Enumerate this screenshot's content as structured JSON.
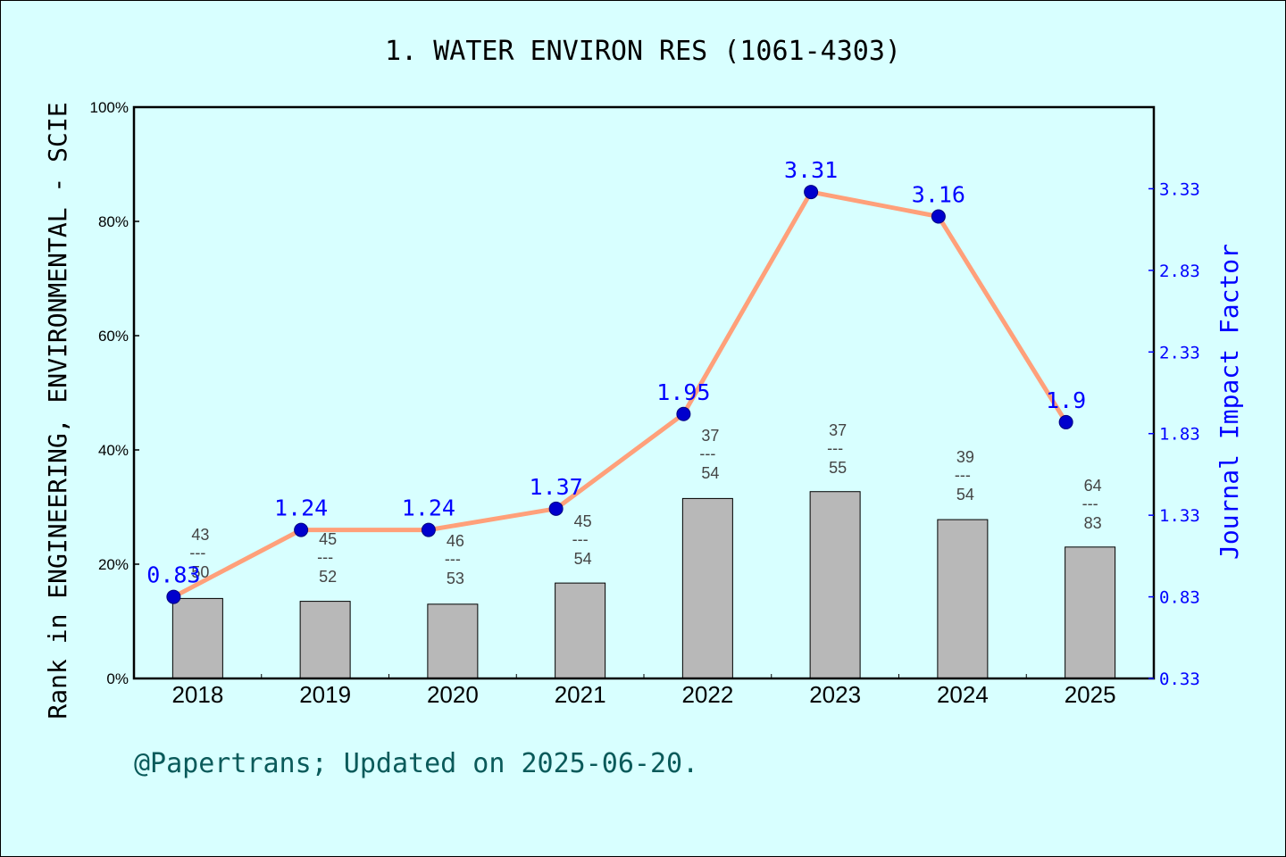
{
  "chart_data": {
    "type": "bar",
    "title": "1. WATER ENVIRON RES (1061-4303)",
    "ylabel": "Rank in ENGINEERING, ENVIRONMENTAL - SCIE",
    "y2label": "Journal Impact Factor",
    "footer": "@Papertrans; Updated on 2025-06-20.",
    "categories": [
      "2018",
      "2019",
      "2020",
      "2021",
      "2022",
      "2023",
      "2024",
      "2025"
    ],
    "ylim": [
      0,
      100
    ],
    "yticks": [
      "0%",
      "20%",
      "40%",
      "60%",
      "80%",
      "100%"
    ],
    "y2lim": [
      0.33,
      3.83
    ],
    "y2ticks": [
      "0.33",
      "0.83",
      "1.33",
      "1.83",
      "2.33",
      "2.83",
      "3.33"
    ],
    "rank": [
      43,
      45,
      46,
      45,
      37,
      37,
      39,
      64
    ],
    "total": [
      50,
      52,
      53,
      54,
      54,
      55,
      54,
      83
    ],
    "divider": "---",
    "series": [
      {
        "name": "Rank",
        "values": [
          14,
          13.5,
          13,
          16.7,
          31.5,
          32.7,
          27.8,
          23
        ],
        "color": "#b8b8b8"
      },
      {
        "name": "Journal Impact Factor",
        "values": [
          0.83,
          1.24,
          1.24,
          1.37,
          1.95,
          3.31,
          3.16,
          1.9
        ],
        "color": "#ffa07a",
        "marker_color": "#0000cd"
      }
    ],
    "grid": false
  }
}
